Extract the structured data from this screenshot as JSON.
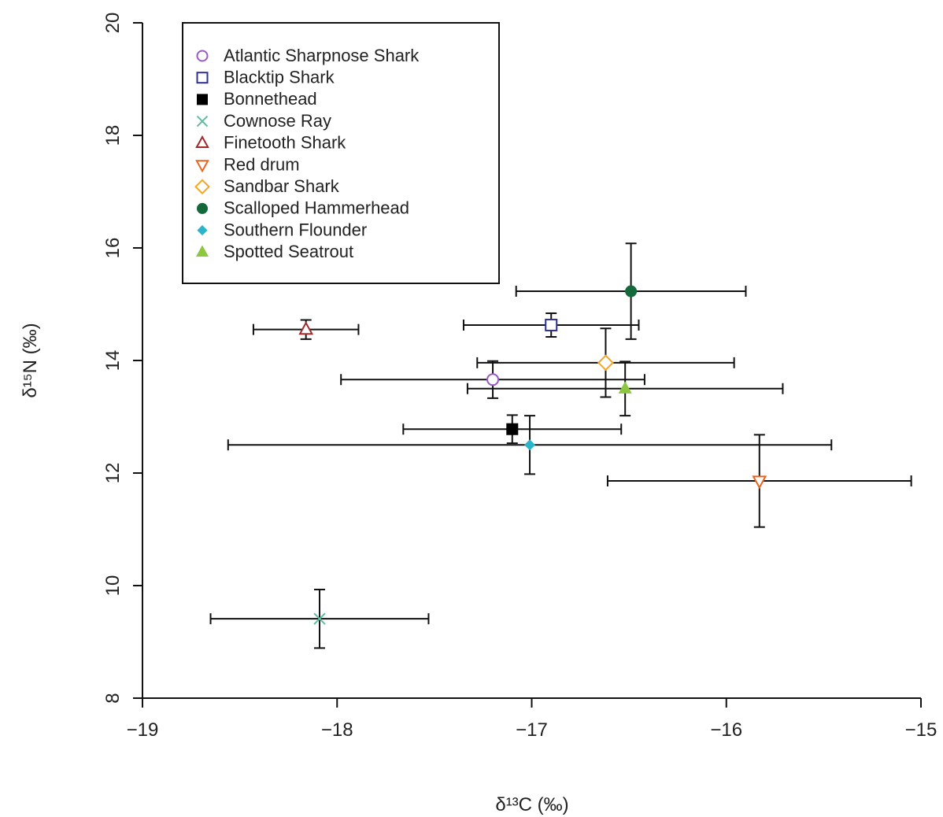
{
  "chart_data": {
    "type": "scatter",
    "x_label": "δ¹³C (‰)",
    "y_label": "δ¹⁵N (‰)",
    "xlim": [
      -19,
      -15
    ],
    "xticks": [
      {
        "value": -19,
        "label": "−19"
      },
      {
        "value": -18,
        "label": "−18"
      },
      {
        "value": -17,
        "label": "−17"
      },
      {
        "value": -16,
        "label": "−16"
      },
      {
        "value": -15,
        "label": "−15"
      }
    ],
    "ylim": [
      8,
      20
    ],
    "yticks": [
      8,
      10,
      12,
      14,
      16,
      18,
      20
    ],
    "legend": "top-left",
    "series": [
      {
        "name": "Atlantic Sharpnose Shark",
        "color": "#9b59c6",
        "marker": "circle-open",
        "x": [
          -17.2
        ],
        "values": [
          13.66
        ],
        "xerr": [
          0.78
        ],
        "yerr": [
          0.33
        ]
      },
      {
        "name": "Blacktip Shark",
        "color": "#2e3192",
        "marker": "square-open",
        "x": [
          -16.9
        ],
        "values": [
          14.63
        ],
        "xerr": [
          0.45
        ],
        "yerr": [
          0.21
        ]
      },
      {
        "name": "Bonnethead",
        "color": "#000000",
        "marker": "square",
        "x": [
          -17.1
        ],
        "values": [
          12.78
        ],
        "xerr": [
          0.56
        ],
        "yerr": [
          0.25
        ]
      },
      {
        "name": "Cownose Ray",
        "color": "#5fbf9f",
        "marker": "cross",
        "x": [
          -18.09
        ],
        "values": [
          9.41
        ],
        "xerr": [
          0.56
        ],
        "yerr": [
          0.52
        ]
      },
      {
        "name": "Finetooth Shark",
        "color": "#a3282a",
        "marker": "triangle-open",
        "x": [
          -18.16
        ],
        "values": [
          14.55
        ],
        "xerr": [
          0.27
        ],
        "yerr": [
          0.17
        ]
      },
      {
        "name": "Red drum",
        "color": "#e8641e",
        "marker": "triangle-down-open",
        "x": [
          -15.83
        ],
        "values": [
          11.86
        ],
        "xerr": [
          0.78
        ],
        "yerr": [
          0.82
        ]
      },
      {
        "name": "Sandbar Shark",
        "color": "#f5a623",
        "marker": "diamond-open",
        "x": [
          -16.62
        ],
        "values": [
          13.96
        ],
        "xerr": [
          0.66
        ],
        "yerr": [
          0.61
        ]
      },
      {
        "name": "Scalloped Hammerhead",
        "color": "#14693a",
        "marker": "circle",
        "x": [
          -16.49
        ],
        "values": [
          15.23
        ],
        "xerr": [
          0.59
        ],
        "yerr": [
          0.85
        ]
      },
      {
        "name": "Southern Flounder",
        "color": "#2bb5c8",
        "marker": "diamond",
        "x": [
          -17.01
        ],
        "values": [
          12.5
        ],
        "xerr": [
          1.55
        ],
        "yerr": [
          0.52
        ]
      },
      {
        "name": "Spotted Seatrout",
        "color": "#8dc63f",
        "marker": "triangle",
        "x": [
          -16.52
        ],
        "values": [
          13.5
        ],
        "xerr": [
          0.81
        ],
        "yerr": [
          0.48
        ]
      }
    ]
  }
}
